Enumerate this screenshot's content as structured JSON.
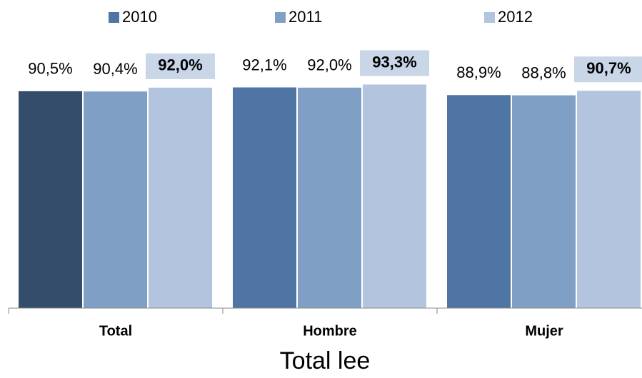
{
  "chart_data": {
    "type": "bar",
    "xlabel": "Total lee",
    "categories": [
      "Total",
      "Hombre",
      "Mujer"
    ],
    "series": [
      {
        "name": "2010",
        "color": "#4e75a3",
        "colors": [
          "#344d6b",
          "#4e75a3",
          "#4e75a3"
        ],
        "values": [
          90.5,
          92.1,
          88.9
        ],
        "value_labels": [
          "90,5%",
          "92,1%",
          "88,9%"
        ]
      },
      {
        "name": "2011",
        "color": "#7f9fc5",
        "values": [
          90.4,
          92.0,
          88.8
        ],
        "value_labels": [
          "90,4%",
          "92,0%",
          "88,8%"
        ]
      },
      {
        "name": "2012",
        "color": "#b3c5de",
        "values": [
          92.0,
          93.3,
          90.7
        ],
        "value_labels": [
          "92,0%",
          "93,3%",
          "90,7%"
        ],
        "bold_labels": true
      }
    ],
    "ylim": [
      0,
      100
    ],
    "grid": false,
    "legend": "top"
  }
}
